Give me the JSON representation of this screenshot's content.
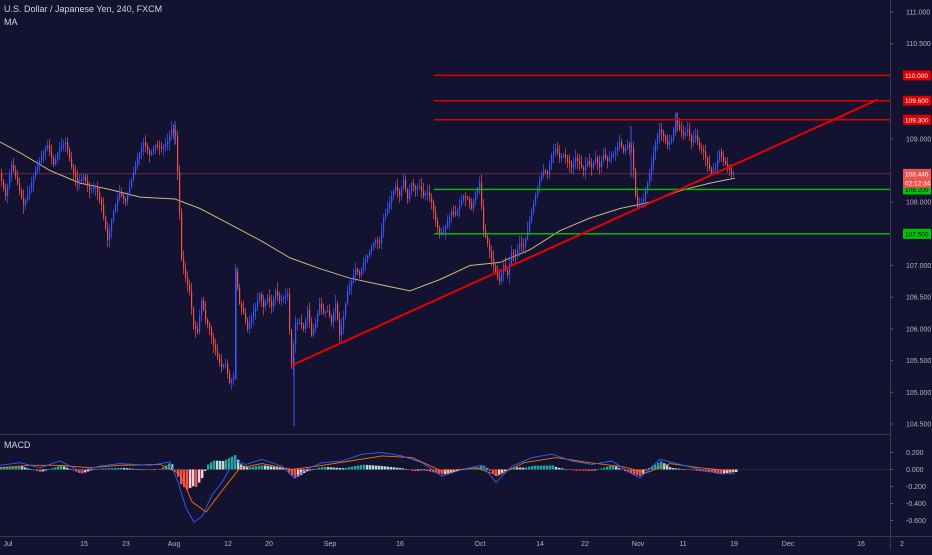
{
  "header": {
    "title": "U.S. Dollar / Japanese Yen, 240, FXCM",
    "indicator": "MA"
  },
  "colors": {
    "background": "#131230",
    "up": "#3d5afe",
    "down": "#ef5350",
    "ma": "#c7b97a",
    "resistance": "#e00000",
    "support": "#00c800",
    "trendline": "#e60000",
    "macd_line": "#2962ff",
    "signal_line": "#ff6d00",
    "hist_up": "#26a69a",
    "hist_down": "#ef5350"
  },
  "chart_data": [
    {
      "type": "candlestick",
      "title": "U.S. Dollar / Japanese Yen, 240, FXCM",
      "ylim": [
        104.3,
        111.2
      ],
      "y_ticks": [
        "111.000",
        "110.500",
        "109.000",
        "108.000",
        "107.000",
        "106.500",
        "106.000",
        "105.500",
        "105.000",
        "104.500"
      ],
      "x_ticks": [
        "Jul",
        "15",
        "23",
        "Aug",
        "12",
        "20",
        "Sep",
        "16",
        "Oct",
        "14",
        "22",
        "Nov",
        "11",
        "19",
        "Dec",
        "16",
        "2"
      ],
      "close_path": [
        [
          0,
          108.45
        ],
        [
          6,
          108.1
        ],
        [
          12,
          108.6
        ],
        [
          18,
          108.3
        ],
        [
          24,
          107.95
        ],
        [
          30,
          108.2
        ],
        [
          36,
          108.5
        ],
        [
          42,
          108.75
        ],
        [
          48,
          108.9
        ],
        [
          54,
          108.6
        ],
        [
          60,
          108.85
        ],
        [
          66,
          108.95
        ],
        [
          72,
          108.55
        ],
        [
          78,
          108.3
        ],
        [
          84,
          108.4
        ],
        [
          90,
          108.2
        ],
        [
          96,
          108.25
        ],
        [
          102,
          107.95
        ],
        [
          108,
          107.4
        ],
        [
          114,
          107.85
        ],
        [
          120,
          108.15
        ],
        [
          126,
          108.0
        ],
        [
          132,
          108.35
        ],
        [
          138,
          108.7
        ],
        [
          144,
          108.95
        ],
        [
          150,
          108.75
        ],
        [
          156,
          108.9
        ],
        [
          162,
          108.85
        ],
        [
          168,
          108.95
        ],
        [
          172,
          109.15
        ],
        [
          176,
          109.05
        ],
        [
          179,
          108.2
        ],
        [
          182,
          107.1
        ],
        [
          186,
          106.8
        ],
        [
          190,
          106.6
        ],
        [
          194,
          106.05
        ],
        [
          198,
          105.95
        ],
        [
          202,
          106.45
        ],
        [
          206,
          106.15
        ],
        [
          210,
          106.0
        ],
        [
          214,
          105.75
        ],
        [
          218,
          105.55
        ],
        [
          222,
          105.4
        ],
        [
          226,
          105.45
        ],
        [
          230,
          105.15
        ],
        [
          234,
          105.25
        ],
        [
          236,
          106.9
        ],
        [
          240,
          106.4
        ],
        [
          244,
          106.25
        ],
        [
          248,
          106.0
        ],
        [
          252,
          106.2
        ],
        [
          256,
          106.35
        ],
        [
          260,
          106.55
        ],
        [
          264,
          106.35
        ],
        [
          268,
          106.5
        ],
        [
          272,
          106.35
        ],
        [
          276,
          106.6
        ],
        [
          280,
          106.45
        ],
        [
          284,
          106.5
        ],
        [
          288,
          106.55
        ],
        [
          292,
          105.4
        ],
        [
          296,
          106.1
        ],
        [
          300,
          106.1
        ],
        [
          304,
          106.0
        ],
        [
          308,
          106.3
        ],
        [
          312,
          105.9
        ],
        [
          316,
          106.1
        ],
        [
          320,
          106.4
        ],
        [
          324,
          106.25
        ],
        [
          328,
          106.3
        ],
        [
          332,
          106.1
        ],
        [
          336,
          106.4
        ],
        [
          340,
          105.9
        ],
        [
          344,
          106.2
        ],
        [
          348,
          106.6
        ],
        [
          352,
          106.75
        ],
        [
          356,
          106.95
        ],
        [
          360,
          106.85
        ],
        [
          364,
          107.05
        ],
        [
          368,
          107.15
        ],
        [
          372,
          107.3
        ],
        [
          376,
          107.4
        ],
        [
          380,
          107.35
        ],
        [
          384,
          107.75
        ],
        [
          388,
          107.9
        ],
        [
          392,
          108.1
        ],
        [
          396,
          108.25
        ],
        [
          400,
          108.1
        ],
        [
          404,
          108.35
        ],
        [
          408,
          108.05
        ],
        [
          412,
          108.3
        ],
        [
          416,
          108.2
        ],
        [
          420,
          108.25
        ],
        [
          424,
          108.1
        ],
        [
          428,
          108.15
        ],
        [
          432,
          108.0
        ],
        [
          436,
          107.7
        ],
        [
          440,
          107.5
        ],
        [
          444,
          107.55
        ],
        [
          448,
          107.7
        ],
        [
          452,
          107.85
        ],
        [
          456,
          107.8
        ],
        [
          460,
          107.95
        ],
        [
          464,
          108.1
        ],
        [
          468,
          108.05
        ],
        [
          472,
          107.9
        ],
        [
          476,
          108.15
        ],
        [
          480,
          108.3
        ],
        [
          484,
          107.55
        ],
        [
          488,
          107.35
        ],
        [
          492,
          107.1
        ],
        [
          496,
          106.9
        ],
        [
          500,
          106.75
        ],
        [
          504,
          107.0
        ],
        [
          508,
          106.85
        ],
        [
          512,
          107.2
        ],
        [
          516,
          107.15
        ],
        [
          520,
          107.35
        ],
        [
          524,
          107.3
        ],
        [
          528,
          107.55
        ],
        [
          532,
          107.85
        ],
        [
          536,
          108.1
        ],
        [
          540,
          108.35
        ],
        [
          544,
          108.5
        ],
        [
          548,
          108.45
        ],
        [
          552,
          108.75
        ],
        [
          556,
          108.85
        ],
        [
          560,
          108.7
        ],
        [
          564,
          108.75
        ],
        [
          568,
          108.65
        ],
        [
          572,
          108.55
        ],
        [
          576,
          108.7
        ],
        [
          580,
          108.6
        ],
        [
          584,
          108.5
        ],
        [
          588,
          108.65
        ],
        [
          592,
          108.55
        ],
        [
          596,
          108.7
        ],
        [
          600,
          108.55
        ],
        [
          604,
          108.75
        ],
        [
          608,
          108.65
        ],
        [
          612,
          108.75
        ],
        [
          616,
          108.8
        ],
        [
          620,
          108.95
        ],
        [
          624,
          108.8
        ],
        [
          628,
          108.9
        ],
        [
          632,
          108.85
        ],
        [
          634,
          108.5
        ],
        [
          637,
          107.9
        ],
        [
          640,
          107.95
        ],
        [
          644,
          108.05
        ],
        [
          648,
          108.3
        ],
        [
          652,
          108.6
        ],
        [
          656,
          108.95
        ],
        [
          660,
          109.15
        ],
        [
          664,
          109.05
        ],
        [
          668,
          108.9
        ],
        [
          672,
          109.0
        ],
        [
          676,
          109.3
        ],
        [
          680,
          109.15
        ],
        [
          684,
          109.05
        ],
        [
          688,
          109.15
        ],
        [
          692,
          108.95
        ],
        [
          696,
          109.05
        ],
        [
          700,
          108.85
        ],
        [
          704,
          108.8
        ],
        [
          708,
          108.6
        ],
        [
          712,
          108.45
        ],
        [
          716,
          108.55
        ],
        [
          720,
          108.8
        ],
        [
          724,
          108.65
        ],
        [
          728,
          108.55
        ],
        [
          732,
          108.45
        ],
        [
          735,
          108.45
        ]
      ],
      "wicks": [
        {
          "x": 175,
          "low": 108.9,
          "high": 109.28
        },
        {
          "x": 236,
          "low": 105.2,
          "high": 106.95
        },
        {
          "x": 294,
          "low": 104.47,
          "high": 105.55
        },
        {
          "x": 631,
          "low": 108.4,
          "high": 109.2
        },
        {
          "x": 676,
          "low": 109.1,
          "high": 109.42
        }
      ],
      "ma": [
        [
          0,
          108.95
        ],
        [
          20,
          108.78
        ],
        [
          50,
          108.5
        ],
        [
          80,
          108.3
        ],
        [
          110,
          108.2
        ],
        [
          140,
          108.08
        ],
        [
          175,
          108.05
        ],
        [
          200,
          107.9
        ],
        [
          230,
          107.65
        ],
        [
          260,
          107.4
        ],
        [
          290,
          107.12
        ],
        [
          320,
          106.95
        ],
        [
          350,
          106.8
        ],
        [
          380,
          106.7
        ],
        [
          410,
          106.6
        ],
        [
          440,
          106.78
        ],
        [
          470,
          107.0
        ],
        [
          500,
          107.05
        ],
        [
          530,
          107.25
        ],
        [
          560,
          107.55
        ],
        [
          590,
          107.75
        ],
        [
          620,
          107.9
        ],
        [
          650,
          108.0
        ],
        [
          680,
          108.18
        ],
        [
          710,
          108.3
        ],
        [
          735,
          108.38
        ]
      ],
      "horizontal_levels": [
        {
          "label": "110.000",
          "value": 110.0,
          "kind": "resistance",
          "x_start": 434
        },
        {
          "label": "109.600",
          "value": 109.6,
          "kind": "resistance",
          "x_start": 434
        },
        {
          "label": "109.300",
          "value": 109.3,
          "kind": "resistance",
          "x_start": 434
        },
        {
          "label": "108.200",
          "value": 108.2,
          "kind": "support",
          "x_start": 434
        },
        {
          "label": "107.500",
          "value": 107.5,
          "kind": "support",
          "x_start": 434
        }
      ],
      "current_price": {
        "label": "108.446",
        "value": 108.446,
        "countdown": "02:12:34"
      },
      "trendline": {
        "from": [
          291,
          105.42
        ],
        "to": [
          878,
          109.62
        ]
      }
    },
    {
      "type": "macd",
      "title": "MACD",
      "ylim": [
        -0.7,
        0.35
      ],
      "y_ticks": [
        "0.200",
        "0.000",
        "-0.200",
        "-0.400",
        "-0.600"
      ],
      "macd": [
        [
          0,
          0.05
        ],
        [
          20,
          0.08
        ],
        [
          40,
          0.02
        ],
        [
          60,
          0.1
        ],
        [
          80,
          -0.02
        ],
        [
          100,
          0.04
        ],
        [
          120,
          0.07
        ],
        [
          150,
          0.05
        ],
        [
          170,
          0.09
        ],
        [
          178,
          -0.15
        ],
        [
          186,
          -0.45
        ],
        [
          194,
          -0.62
        ],
        [
          202,
          -0.55
        ],
        [
          212,
          -0.3
        ],
        [
          222,
          -0.15
        ],
        [
          234,
          0.1
        ],
        [
          246,
          0.06
        ],
        [
          262,
          0.12
        ],
        [
          282,
          0.04
        ],
        [
          294,
          -0.1
        ],
        [
          306,
          0.0
        ],
        [
          322,
          0.08
        ],
        [
          342,
          0.1
        ],
        [
          362,
          0.18
        ],
        [
          382,
          0.2
        ],
        [
          402,
          0.16
        ],
        [
          422,
          0.08
        ],
        [
          442,
          -0.08
        ],
        [
          462,
          0.0
        ],
        [
          482,
          0.05
        ],
        [
          496,
          -0.15
        ],
        [
          512,
          0.04
        ],
        [
          532,
          0.14
        ],
        [
          552,
          0.18
        ],
        [
          572,
          0.1
        ],
        [
          592,
          0.06
        ],
        [
          612,
          0.1
        ],
        [
          632,
          -0.05
        ],
        [
          640,
          -0.1
        ],
        [
          660,
          0.12
        ],
        [
          680,
          0.06
        ],
        [
          700,
          0.0
        ],
        [
          720,
          -0.05
        ],
        [
          735,
          -0.05
        ]
      ],
      "signal": [
        [
          0,
          0.02
        ],
        [
          30,
          0.05
        ],
        [
          60,
          0.05
        ],
        [
          90,
          0.02
        ],
        [
          120,
          0.05
        ],
        [
          160,
          0.06
        ],
        [
          180,
          -0.05
        ],
        [
          192,
          -0.38
        ],
        [
          206,
          -0.5
        ],
        [
          222,
          -0.25
        ],
        [
          240,
          0.02
        ],
        [
          262,
          0.07
        ],
        [
          292,
          0.0
        ],
        [
          318,
          0.04
        ],
        [
          350,
          0.1
        ],
        [
          382,
          0.16
        ],
        [
          412,
          0.14
        ],
        [
          442,
          -0.02
        ],
        [
          476,
          0.02
        ],
        [
          498,
          -0.07
        ],
        [
          524,
          0.08
        ],
        [
          556,
          0.14
        ],
        [
          590,
          0.08
        ],
        [
          624,
          0.03
        ],
        [
          646,
          -0.04
        ],
        [
          670,
          0.07
        ],
        [
          700,
          0.02
        ],
        [
          735,
          -0.02
        ]
      ],
      "histogram_step": 3
    }
  ]
}
